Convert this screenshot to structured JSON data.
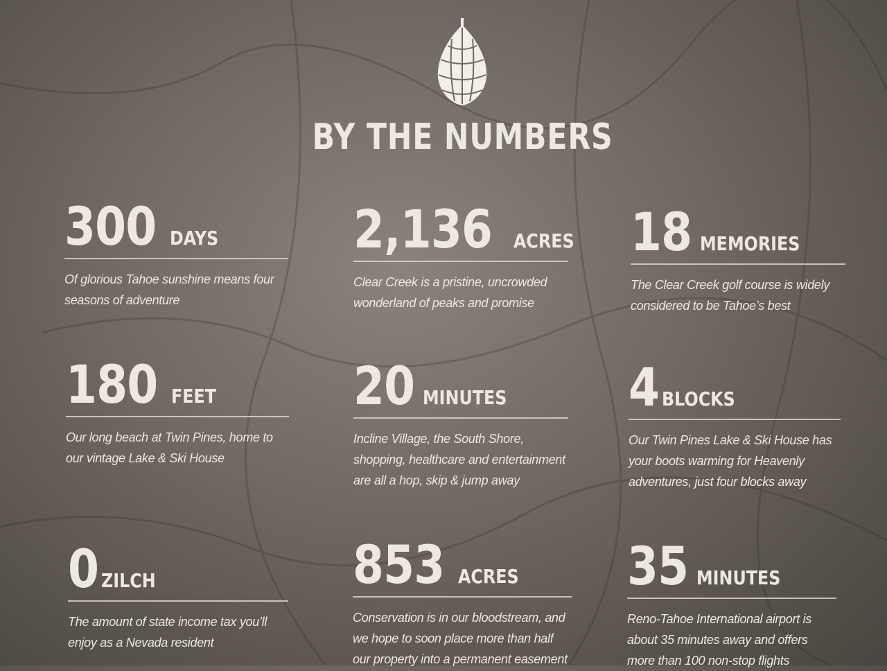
{
  "title": "BY THE NUMBERS",
  "icon": "pinecone-icon",
  "stats": [
    {
      "number": "300",
      "unit": "DAYS",
      "description": "Of glorious Tahoe sunshine means four seasons of adventure"
    },
    {
      "number": "2,136",
      "unit": "ACRES",
      "description": "Clear Creek is a pristine, uncrowded wonderland of peaks and promise"
    },
    {
      "number": "18",
      "unit": "MEMORIES",
      "description": "The Clear Creek golf course is widely considered to be Tahoe’s best"
    },
    {
      "number": "180",
      "unit": "FEET",
      "description": "Our long beach at Twin Pines, home to our vintage Lake & Ski House"
    },
    {
      "number": "20",
      "unit": "MINUTES",
      "description": "Incline Village, the South Shore, shopping, healthcare and entertainment are all a hop, skip & jump away"
    },
    {
      "number": "4",
      "unit": "BLOCKS",
      "description": "Our Twin Pines Lake & Ski House has your boots warming for Heavenly adventures, just four blocks away"
    },
    {
      "number": "0",
      "unit": "ZILCH",
      "description": "The amount of state income tax you’ll enjoy as a Nevada resident"
    },
    {
      "number": "853",
      "unit": "ACRES",
      "description": "Conservation is in our bloodstream, and we hope to soon place more than half our property into a permanent easement"
    },
    {
      "number": "35",
      "unit": "MINUTES",
      "description": "Reno-Tahoe International airport is about 35 minutes away and offers more than 100 non-stop flights"
    }
  ]
}
